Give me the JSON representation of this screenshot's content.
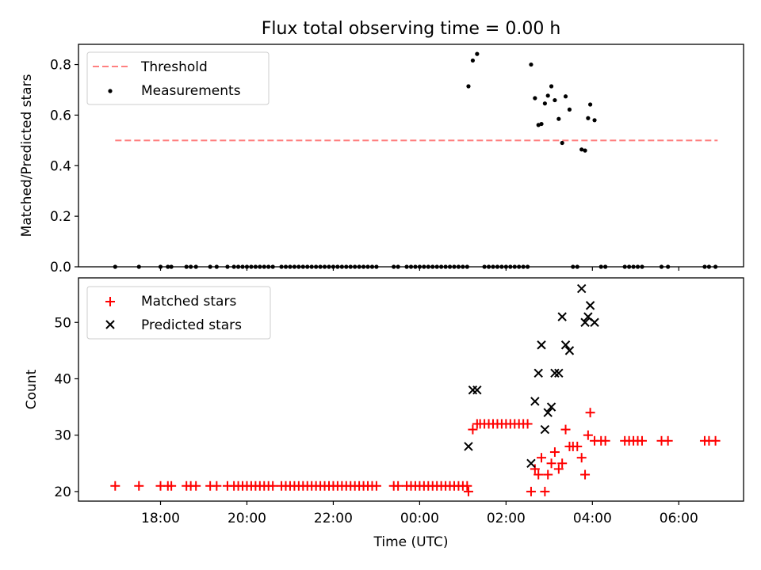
{
  "chart_data": [
    {
      "type": "scatter",
      "title": "Flux total observing time = 0.00 h",
      "xlabel": "",
      "ylabel": "Matched/Predicted stars",
      "ylim": [
        0,
        0.88
      ],
      "yticks": [
        0.0,
        0.2,
        0.4,
        0.6,
        0.8
      ],
      "ytick_labels": [
        "0.0",
        "0.2",
        "0.4",
        "0.6",
        "0.8"
      ],
      "legend_position": "top-left",
      "legend": [
        {
          "label": "Threshold",
          "kind": "dashed-line",
          "color": "#ff8080"
        },
        {
          "label": "Measurements",
          "kind": "dot",
          "color": "#000000"
        }
      ],
      "threshold": {
        "value": 0.5,
        "x_start": -7.05,
        "x_end": 6.9
      },
      "series": [
        {
          "name": "Measurements",
          "color": "#000000",
          "x": [
            -7.05,
            -6.5,
            -6.0,
            -5.83,
            -5.75,
            -5.4,
            -5.3,
            -5.18,
            -4.85,
            -4.7,
            -4.45,
            -4.3,
            -4.2,
            -4.1,
            -4.0,
            -3.9,
            -3.8,
            -3.7,
            -3.6,
            -3.5,
            -3.4,
            -3.2,
            -3.1,
            -3.0,
            -2.9,
            -2.8,
            -2.7,
            -2.6,
            -2.5,
            -2.4,
            -2.3,
            -2.2,
            -2.1,
            -2.0,
            -1.9,
            -1.8,
            -1.7,
            -1.6,
            -1.5,
            -1.4,
            -1.3,
            -1.2,
            -1.1,
            -1.0,
            -0.6,
            -0.5,
            -0.3,
            -0.2,
            -0.1,
            0.0,
            0.1,
            0.2,
            0.3,
            0.4,
            0.5,
            0.6,
            0.7,
            0.8,
            0.9,
            1.0,
            1.1,
            1.5,
            1.6,
            1.7,
            1.8,
            1.9,
            2.0,
            2.1,
            2.2,
            2.3,
            2.4,
            2.5,
            3.55,
            3.65,
            4.2,
            4.3,
            4.75,
            4.85,
            4.95,
            5.05,
            5.15,
            5.6,
            5.75,
            6.6,
            6.7,
            6.85,
            1.13,
            1.23,
            1.33,
            2.58,
            2.67,
            2.75,
            2.82,
            2.9,
            2.97,
            3.05,
            3.13,
            3.22,
            3.3,
            3.38,
            3.47,
            3.75,
            3.83,
            3.9,
            3.95,
            4.05
          ],
          "y": [
            0,
            0,
            0,
            0,
            0,
            0,
            0,
            0,
            0,
            0,
            0,
            0,
            0,
            0,
            0,
            0,
            0,
            0,
            0,
            0,
            0,
            0,
            0,
            0,
            0,
            0,
            0,
            0,
            0,
            0,
            0,
            0,
            0,
            0,
            0,
            0,
            0,
            0,
            0,
            0,
            0,
            0,
            0,
            0,
            0,
            0,
            0,
            0,
            0,
            0,
            0,
            0,
            0,
            0,
            0,
            0,
            0,
            0,
            0,
            0,
            0,
            0,
            0,
            0,
            0,
            0,
            0,
            0,
            0,
            0,
            0,
            0,
            0,
            0,
            0,
            0,
            0,
            0,
            0,
            0,
            0,
            0,
            0,
            0,
            0,
            0,
            0.714,
            0.816,
            0.842,
            0.8,
            0.667,
            0.561,
            0.565,
            0.646,
            0.677,
            0.714,
            0.659,
            0.585,
            0.49,
            0.674,
            0.622,
            0.464,
            0.46,
            0.588,
            0.642,
            0.58
          ]
        }
      ]
    },
    {
      "type": "scatter",
      "title": "",
      "xlabel": "Time (UTC)",
      "ylabel": "Count",
      "ylim": [
        18.3,
        57.9
      ],
      "yticks": [
        20,
        30,
        40,
        50
      ],
      "ytick_labels": [
        "20",
        "30",
        "40",
        "50"
      ],
      "xlim": [
        -7.9,
        7.5
      ],
      "xticks": [
        -6,
        -4,
        -2,
        0,
        2,
        4,
        6
      ],
      "xtick_labels": [
        "18:00",
        "20:00",
        "22:00",
        "00:00",
        "02:00",
        "04:00",
        "06:00"
      ],
      "legend_position": "top-left",
      "legend": [
        {
          "label": "Matched stars",
          "kind": "plus",
          "color": "#ff0000"
        },
        {
          "label": "Predicted stars",
          "kind": "cross",
          "color": "#000000"
        }
      ],
      "series": [
        {
          "name": "Matched stars",
          "color": "#ff0000",
          "x": [
            -7.05,
            -6.5,
            -6.0,
            -5.83,
            -5.75,
            -5.4,
            -5.3,
            -5.18,
            -4.85,
            -4.7,
            -4.45,
            -4.3,
            -4.2,
            -4.1,
            -4.0,
            -3.9,
            -3.8,
            -3.7,
            -3.6,
            -3.5,
            -3.4,
            -3.2,
            -3.1,
            -3.0,
            -2.9,
            -2.8,
            -2.7,
            -2.6,
            -2.5,
            -2.4,
            -2.3,
            -2.2,
            -2.1,
            -2.0,
            -1.9,
            -1.8,
            -1.7,
            -1.6,
            -1.5,
            -1.4,
            -1.3,
            -1.2,
            -1.1,
            -1.0,
            -0.6,
            -0.5,
            -0.3,
            -0.2,
            -0.1,
            0.0,
            0.1,
            0.2,
            0.3,
            0.4,
            0.5,
            0.6,
            0.7,
            0.8,
            0.9,
            1.0,
            1.1,
            1.13,
            1.23,
            1.33,
            1.4,
            1.5,
            1.6,
            1.7,
            1.8,
            1.9,
            2.0,
            2.1,
            2.2,
            2.3,
            2.4,
            2.5,
            2.58,
            2.67,
            2.75,
            2.82,
            2.9,
            2.97,
            3.05,
            3.13,
            3.22,
            3.3,
            3.38,
            3.47,
            3.55,
            3.65,
            3.75,
            3.83,
            3.9,
            3.95,
            4.05,
            4.2,
            4.3,
            4.75,
            4.85,
            4.95,
            5.05,
            5.15,
            5.6,
            5.75,
            6.6,
            6.7,
            6.85
          ],
          "y": [
            21,
            21,
            21,
            21,
            21,
            21,
            21,
            21,
            21,
            21,
            21,
            21,
            21,
            21,
            21,
            21,
            21,
            21,
            21,
            21,
            21,
            21,
            21,
            21,
            21,
            21,
            21,
            21,
            21,
            21,
            21,
            21,
            21,
            21,
            21,
            21,
            21,
            21,
            21,
            21,
            21,
            21,
            21,
            21,
            21,
            21,
            21,
            21,
            21,
            21,
            21,
            21,
            21,
            21,
            21,
            21,
            21,
            21,
            21,
            21,
            21,
            20,
            31,
            32,
            32,
            32,
            32,
            32,
            32,
            32,
            32,
            32,
            32,
            32,
            32,
            32,
            20,
            24,
            23,
            26,
            20,
            23,
            25,
            27,
            24,
            25,
            31,
            28,
            28,
            28,
            26,
            23,
            30,
            34,
            29,
            29,
            29,
            29,
            29,
            29,
            29,
            29,
            29,
            29,
            29,
            29,
            29
          ]
        },
        {
          "name": "Predicted stars",
          "color": "#000000",
          "x": [
            1.13,
            1.23,
            1.33,
            2.58,
            2.67,
            2.75,
            2.82,
            2.9,
            2.97,
            3.05,
            3.13,
            3.22,
            3.3,
            3.38,
            3.47,
            3.75,
            3.83,
            3.9,
            3.95,
            4.05
          ],
          "y": [
            28,
            38,
            38,
            25,
            36,
            41,
            46,
            31,
            34,
            35,
            41,
            41,
            51,
            46,
            45,
            56,
            50,
            51,
            53,
            50
          ]
        }
      ]
    }
  ]
}
